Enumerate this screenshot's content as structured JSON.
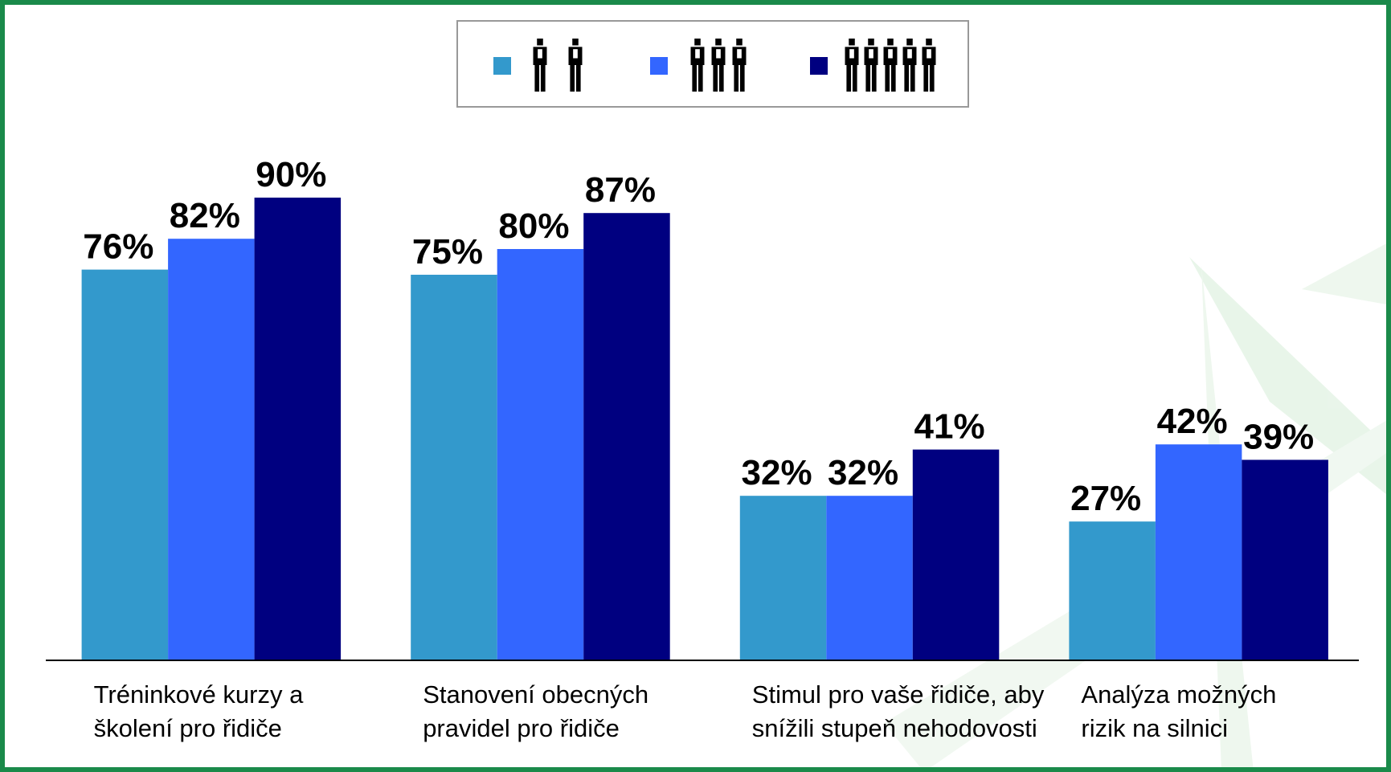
{
  "chart_data": {
    "type": "bar",
    "categories": [
      "Tréninkové kurzy a\nškolení pro řidiče",
      "Stanovení obecných\npravidel pro řidiče",
      "Stimul pro vaše řidiče, aby\nsnížili stupeň nehodovosti",
      "Analýza možných\nrizik na silnici"
    ],
    "series": [
      {
        "color": "#3399cc",
        "values": [
          76,
          75,
          32,
          27
        ],
        "value_labels": [
          "76%",
          "75%",
          "32%",
          "27%"
        ]
      },
      {
        "color": "#3366ff",
        "values": [
          82,
          80,
          32,
          42
        ],
        "value_labels": [
          "82%",
          "80%",
          "32%",
          "42%"
        ]
      },
      {
        "color": "#000080",
        "values": [
          90,
          87,
          41,
          39
        ],
        "value_labels": [
          "90%",
          "87%",
          "41%",
          "39%"
        ]
      }
    ]
  }
}
